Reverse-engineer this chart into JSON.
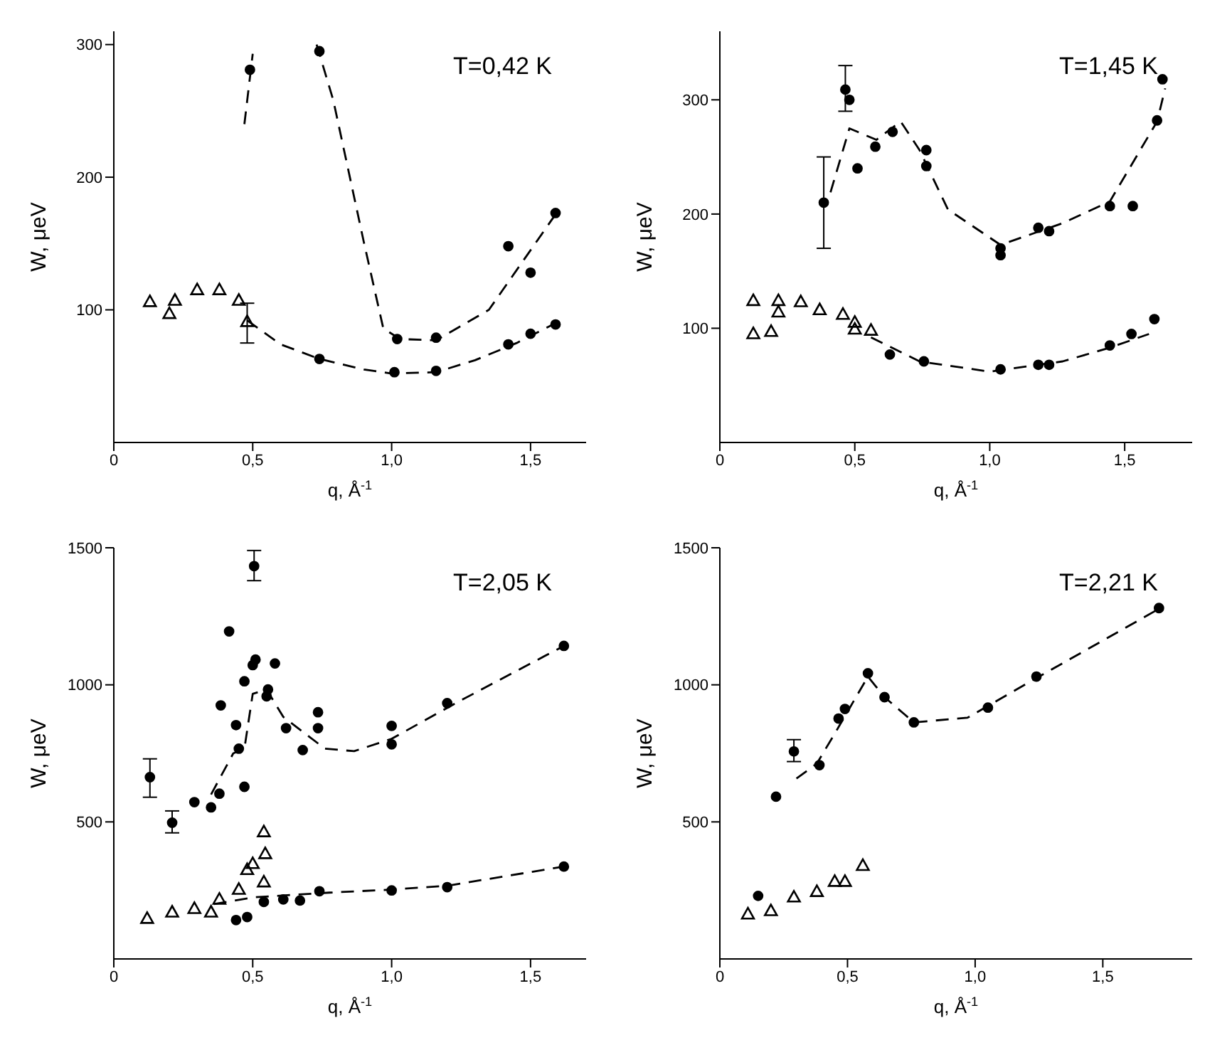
{
  "chart_data": [
    {
      "type": "scatter",
      "title": "T=0,42 K",
      "xlabel": "q, Å$^{-1}$",
      "ylabel": "W, μeV",
      "xlim": [
        0,
        1.7
      ],
      "ylim": [
        0,
        310
      ],
      "xticks": [
        {
          "value": 0,
          "label": "0"
        },
        {
          "value": 0.5,
          "label": "0,5"
        },
        {
          "value": 1,
          "label": "1,0"
        },
        {
          "value": 1.5,
          "label": "1,5"
        }
      ],
      "yticks": [
        100,
        200,
        300
      ],
      "grid": false,
      "series": [
        {
          "marker": "circle",
          "color": "#000000",
          "x": [
            0.49,
            0.74,
            1.02,
            1.16,
            1.42,
            1.5,
            1.59
          ],
          "values": [
            281,
            295,
            78,
            79,
            148,
            128,
            173
          ]
        },
        {
          "type": "scatter",
          "marker": "triangle",
          "color": "#000000",
          "x": [
            0.13,
            0.2,
            0.22,
            0.3,
            0.38,
            0.45,
            0.48
          ],
          "values": [
            106,
            97,
            107,
            115,
            115,
            107,
            91
          ],
          "errors": [
            null,
            null,
            null,
            null,
            null,
            null,
            [
              75,
              105
            ]
          ]
        },
        {
          "type": "scatter",
          "marker": "circle",
          "color": "#000000",
          "x": [
            0.74,
            1.01,
            1.16,
            1.42,
            1.5,
            1.59
          ],
          "values": [
            63,
            53,
            54,
            74,
            82,
            89
          ]
        },
        {
          "type": "line",
          "line_style": "dashed",
          "color": "#000000",
          "x": [
            0.47,
            0.5
          ],
          "values": [
            240,
            293
          ]
        },
        {
          "type": "line",
          "line_style": "dashed",
          "color": "#000000",
          "x": [
            0.73,
            0.79,
            0.9,
            0.97,
            1.03,
            1.16,
            1.35,
            1.59
          ],
          "values": [
            300,
            258,
            151,
            86,
            78,
            77,
            100,
            172
          ]
        },
        {
          "type": "line",
          "line_style": "dashed",
          "color": "#000000",
          "x": [
            0.48,
            0.6,
            0.74,
            0.9,
            1.0,
            1.16,
            1.3,
            1.45,
            1.59
          ],
          "values": [
            92,
            74,
            63,
            55,
            52,
            53,
            62,
            75,
            90
          ]
        }
      ]
    },
    {
      "type": "scatter",
      "title": "T=1,45 K",
      "xlabel": "q, Å$^{-1}$",
      "ylabel": "W, μeV",
      "xlim": [
        0,
        1.75
      ],
      "ylim": [
        0,
        360
      ],
      "xticks": [
        {
          "value": 0,
          "label": "0"
        },
        {
          "value": 0.5,
          "label": "0,5"
        },
        {
          "value": 1,
          "label": "1,0"
        },
        {
          "value": 1.5,
          "label": "1,5"
        }
      ],
      "yticks": [
        100,
        200,
        300
      ],
      "grid": false,
      "series": [
        {
          "marker": "circle",
          "color": "#000000",
          "x": [
            0.385,
            0.465,
            0.48,
            0.51,
            0.576,
            0.64,
            0.765,
            0.765,
            1.04,
            1.04,
            1.18,
            1.22,
            1.445,
            1.53,
            1.62,
            1.64
          ],
          "values": [
            210,
            309,
            300,
            240,
            259,
            272,
            256,
            242,
            170,
            164,
            188,
            185,
            207,
            207,
            282,
            318
          ],
          "errors": [
            [
              170,
              250
            ],
            [
              290,
              330
            ],
            null,
            null,
            null,
            null,
            null,
            null,
            null,
            null,
            null,
            null,
            null,
            null,
            null,
            null
          ]
        },
        {
          "type": "scatter",
          "marker": "triangle",
          "color": "#000000",
          "x": [
            0.124,
            0.124,
            0.19,
            0.217,
            0.217,
            0.3,
            0.37,
            0.456,
            0.5,
            0.5,
            0.56
          ],
          "values": [
            124,
            95,
            97,
            124,
            114,
            123,
            116,
            112,
            105,
            99,
            98
          ]
        },
        {
          "type": "scatter",
          "marker": "circle",
          "color": "#000000",
          "x": [
            0.63,
            0.756,
            1.04,
            1.18,
            1.22,
            1.445,
            1.525,
            1.61
          ],
          "values": [
            77,
            71,
            64,
            68,
            68,
            85,
            95,
            108
          ]
        },
        {
          "type": "line",
          "line_style": "dashed",
          "color": "#000000",
          "x": [
            0.41,
            0.48,
            0.58,
            0.67,
            0.74,
            0.845,
            1.04,
            1.27,
            1.445,
            1.62,
            1.65
          ],
          "values": [
            219,
            275,
            265,
            281,
            256,
            204,
            173,
            192,
            211,
            281,
            310
          ]
        },
        {
          "type": "line",
          "line_style": "dashed",
          "color": "#000000",
          "x": [
            0.56,
            0.74,
            1.0,
            1.27,
            1.445,
            1.59
          ],
          "values": [
            92,
            71,
            62,
            71,
            83,
            95
          ]
        }
      ]
    },
    {
      "type": "scatter",
      "title": "T=2,05 K",
      "xlabel": "q, Å$^{-1}$",
      "ylabel": "W, μeV",
      "xlim": [
        0,
        1.7
      ],
      "ylim": [
        0,
        1500
      ],
      "xticks": [
        {
          "value": 0,
          "label": "0"
        },
        {
          "value": 0.5,
          "label": "0,5"
        },
        {
          "value": 1,
          "label": "1,0"
        },
        {
          "value": 1.5,
          "label": "1,5"
        }
      ],
      "yticks": [
        500,
        1000,
        1500
      ],
      "grid": false,
      "series": [
        {
          "marker": "circle",
          "color": "#000000",
          "x": [
            0.13,
            0.21,
            0.29,
            0.35,
            0.38,
            0.385,
            0.415,
            0.44,
            0.45,
            0.47,
            0.47,
            0.5,
            0.51,
            0.505,
            0.55,
            0.555,
            0.58,
            0.62,
            0.68,
            0.735,
            0.735,
            1.0,
            1.0,
            1.2,
            1.62
          ],
          "values": [
            663,
            497,
            572,
            553,
            603,
            925,
            1195,
            853,
            767,
            1013,
            628,
            1072,
            1092,
            1433,
            958,
            983,
            1078,
            842,
            762,
            842,
            900,
            850,
            783,
            933,
            1142
          ],
          "errors": [
            [
              590,
              730
            ],
            [
              460,
              540
            ],
            null,
            null,
            null,
            null,
            null,
            null,
            null,
            null,
            null,
            null,
            null,
            [
              1380,
              1490
            ],
            null,
            null,
            null,
            null,
            null,
            null,
            null,
            null,
            null,
            null,
            null
          ]
        },
        {
          "type": "scatter",
          "marker": "triangle",
          "color": "#000000",
          "x": [
            0.12,
            0.21,
            0.29,
            0.35,
            0.38,
            0.45,
            0.48,
            0.5,
            0.54,
            0.545,
            0.54
          ],
          "values": [
            147,
            170,
            183,
            170,
            217,
            253,
            325,
            347,
            463,
            383,
            280
          ]
        },
        {
          "type": "scatter",
          "marker": "circle",
          "color": "#000000",
          "x": [
            0.44,
            0.48,
            0.54,
            0.61,
            0.67,
            0.74,
            1.0,
            1.2,
            1.62
          ],
          "values": [
            142,
            153,
            208,
            217,
            213,
            247,
            250,
            262,
            337
          ]
        },
        {
          "type": "line",
          "line_style": "dashed",
          "color": "#000000",
          "x": [
            0.35,
            0.43,
            0.47,
            0.5,
            0.55,
            0.61,
            0.76,
            0.865,
            1.0,
            1.23,
            1.62
          ],
          "values": [
            600,
            750,
            767,
            967,
            983,
            883,
            767,
            758,
            803,
            933,
            1142
          ]
        },
        {
          "type": "line",
          "line_style": "dashed",
          "color": "#000000",
          "x": [
            0.36,
            0.505,
            0.776,
            1.0,
            1.2,
            1.62
          ],
          "values": [
            200,
            225,
            242,
            253,
            267,
            337
          ]
        }
      ]
    },
    {
      "type": "scatter",
      "title": "T=2,21 K",
      "xlabel": "q, Å$^{-1}$",
      "ylabel": "W, μeV",
      "xlim": [
        0,
        1.85
      ],
      "ylim": [
        0,
        1500
      ],
      "xticks": [
        {
          "value": 0,
          "label": "0"
        },
        {
          "value": 0.5,
          "label": "0,5"
        },
        {
          "value": 1,
          "label": "1,0"
        },
        {
          "value": 1.5,
          "label": "1,5"
        }
      ],
      "yticks": [
        500,
        1000,
        1500
      ],
      "grid": false,
      "series": [
        {
          "marker": "circle",
          "color": "#000000",
          "x": [
            0.15,
            0.22,
            0.29,
            0.39,
            0.465,
            0.49,
            0.58,
            0.645,
            0.76,
            1.05,
            1.24,
            1.72
          ],
          "values": [
            230,
            592,
            757,
            707,
            877,
            912,
            1042,
            955,
            863,
            917,
            1030,
            1280
          ],
          "errors": [
            null,
            null,
            [
              720,
              800
            ],
            null,
            null,
            null,
            null,
            null,
            null,
            null,
            null,
            null
          ]
        },
        {
          "type": "scatter",
          "marker": "triangle",
          "color": "#000000",
          "x": [
            0.11,
            0.2,
            0.29,
            0.38,
            0.45,
            0.49,
            0.56
          ],
          "values": [
            163,
            175,
            225,
            245,
            282,
            282,
            340
          ]
        },
        {
          "type": "line",
          "line_style": "dashed",
          "color": "#000000",
          "x": [
            0.3,
            0.38,
            0.455,
            0.58,
            0.645,
            0.76,
            0.97,
            1.25,
            1.71
          ],
          "values": [
            658,
            713,
            830,
            1030,
            955,
            863,
            880,
            1030,
            1272
          ]
        }
      ]
    }
  ]
}
